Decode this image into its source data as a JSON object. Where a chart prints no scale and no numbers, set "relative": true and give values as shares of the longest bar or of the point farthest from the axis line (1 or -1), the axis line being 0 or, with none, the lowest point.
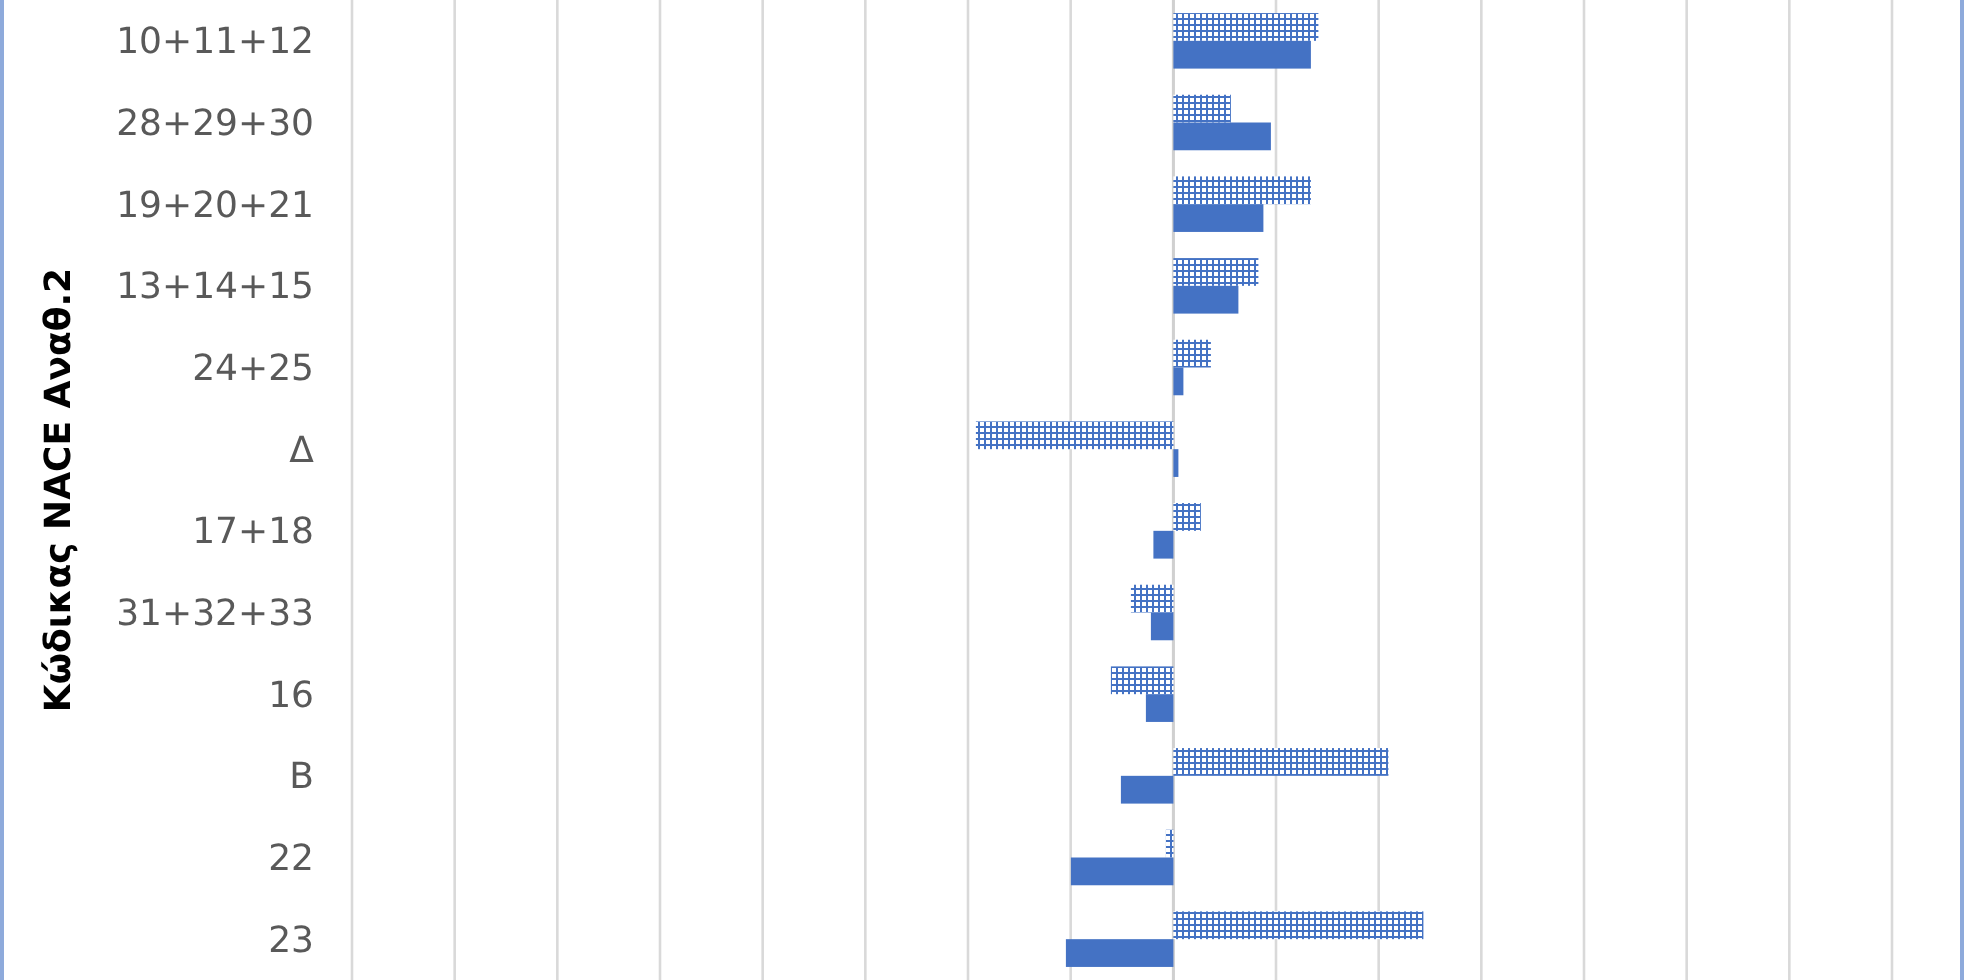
{
  "chart_data": {
    "type": "bar",
    "orientation": "horizontal",
    "relative": true,
    "grid": true,
    "ylabel": "Κώδικας NACE Αναθ.2",
    "categories": [
      "10+11+12",
      "28+29+30",
      "19+20+21",
      "13+14+15",
      "24+25",
      "Δ",
      "17+18",
      "31+32+33",
      "16",
      "B",
      "22",
      "23"
    ],
    "series": [
      {
        "color": "#4472c4",
        "values": [
          0.58,
          0.23,
          0.55,
          0.34,
          0.15,
          -0.79,
          0.11,
          -0.17,
          -0.25,
          0.86,
          -0.03,
          1
        ]
      },
      {
        "color": "#4472c4",
        "values": [
          0.55,
          0.39,
          0.36,
          0.26,
          0.04,
          0.02,
          -0.08,
          -0.09,
          -0.11,
          -0.21,
          -0.41,
          -0.43
        ]
      }
    ]
  }
}
